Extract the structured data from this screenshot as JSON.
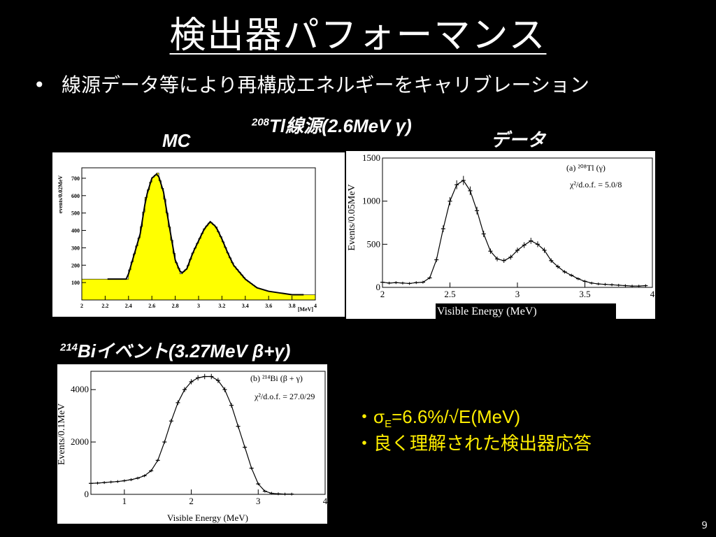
{
  "slide": {
    "title": "検出器パフォーマンス",
    "bullet": "線源データ等により再構成エネルギーをキャリブレーション",
    "source_label": {
      "sup": "208",
      "text": "Tl線源(2.6MeV γ)"
    },
    "mc_label": "MC",
    "data_label": "データ",
    "bi_label": {
      "sup": "214",
      "text": "Biイベント(3.27MeV β+γ)"
    },
    "notes": [
      {
        "prefix": "・σ",
        "sub": "E",
        "rest": "=6.6%/√E(MeV)"
      },
      {
        "text": "・良く理解された検出器応答"
      }
    ],
    "page_number": "9",
    "colors": {
      "background": "#000000",
      "notes": "#ffee00",
      "mc_fill": "#ffff00"
    }
  },
  "chart_data": [
    {
      "id": "mc",
      "type": "bar",
      "title": "",
      "xlabel": "[MeV]",
      "ylabel": "events/0.02MeV",
      "xlim": [
        2,
        4
      ],
      "ylim": [
        0,
        760
      ],
      "xticks": [
        "2",
        "2.2",
        "2.4",
        "2.6",
        "2.8",
        "3",
        "3.2",
        "3.4",
        "3.6",
        "3.8",
        "4"
      ],
      "yticks": [
        "100",
        "200",
        "300",
        "400",
        "500",
        "600",
        "700"
      ],
      "bin_width": 0.02,
      "x": [
        2.4,
        2.5,
        2.55,
        2.6,
        2.65,
        2.7,
        2.75,
        2.8,
        2.85,
        2.9,
        2.95,
        3.0,
        3.05,
        3.1,
        3.15,
        3.2,
        3.25,
        3.3,
        3.4,
        3.5,
        3.6,
        3.7,
        3.8
      ],
      "values": [
        150,
        380,
        590,
        700,
        730,
        620,
        420,
        230,
        150,
        180,
        270,
        340,
        410,
        450,
        420,
        350,
        270,
        200,
        120,
        70,
        50,
        40,
        30
      ],
      "flat_background": 120,
      "grid": false,
      "legend": "none"
    },
    {
      "id": "tl208",
      "type": "scatter",
      "title": "",
      "xlabel": "Visible Energy (MeV)",
      "ylabel": "Events/0.05MeV",
      "xlim": [
        2,
        4
      ],
      "ylim": [
        0,
        1500
      ],
      "xticks": [
        "2",
        "2.5",
        "3",
        "3.5",
        "4"
      ],
      "yticks": [
        "0",
        "500",
        "1000",
        "1500"
      ],
      "annotations": [
        "(a) ²⁰⁸Tl (γ)",
        "χ²/d.o.f. = 5.0/8"
      ],
      "x": [
        2.0,
        2.05,
        2.1,
        2.15,
        2.2,
        2.25,
        2.3,
        2.35,
        2.4,
        2.45,
        2.5,
        2.55,
        2.6,
        2.65,
        2.7,
        2.75,
        2.8,
        2.85,
        2.9,
        2.95,
        3.0,
        3.05,
        3.1,
        3.15,
        3.2,
        3.25,
        3.3,
        3.35,
        3.4,
        3.45,
        3.5,
        3.55,
        3.6,
        3.65,
        3.7,
        3.75,
        3.8,
        3.85,
        3.9,
        3.95
      ],
      "y": [
        60,
        50,
        55,
        50,
        45,
        55,
        60,
        110,
        320,
        680,
        1000,
        1190,
        1240,
        1120,
        890,
        620,
        420,
        330,
        310,
        350,
        430,
        490,
        540,
        500,
        430,
        310,
        240,
        180,
        140,
        100,
        70,
        50,
        40,
        35,
        30,
        25,
        20,
        15,
        15,
        20
      ],
      "grid": false,
      "legend": "none"
    },
    {
      "id": "bi214",
      "type": "scatter",
      "title": "",
      "xlabel": "Visible Energy (MeV)",
      "ylabel": "Events/0.1MeV",
      "xlim": [
        0.5,
        4
      ],
      "ylim": [
        0,
        4700
      ],
      "xticks": [
        "1",
        "2",
        "3",
        "4"
      ],
      "yticks": [
        "0",
        "2000",
        "4000"
      ],
      "annotations": [
        "(b) ²¹⁴Bi (β + γ)",
        "χ²/d.o.f. = 27.0/29"
      ],
      "x": [
        0.5,
        0.6,
        0.7,
        0.8,
        0.9,
        1.0,
        1.1,
        1.2,
        1.3,
        1.4,
        1.5,
        1.6,
        1.7,
        1.8,
        1.9,
        2.0,
        2.1,
        2.2,
        2.3,
        2.4,
        2.5,
        2.6,
        2.7,
        2.8,
        2.9,
        3.0,
        3.1,
        3.2,
        3.3,
        3.4,
        3.5
      ],
      "y": [
        420,
        430,
        450,
        470,
        490,
        520,
        560,
        620,
        710,
        900,
        1300,
        2000,
        2800,
        3500,
        4000,
        4300,
        4450,
        4500,
        4500,
        4350,
        4000,
        3400,
        2600,
        1800,
        1000,
        400,
        120,
        40,
        20,
        10,
        10
      ],
      "grid": false,
      "legend": "none"
    }
  ]
}
